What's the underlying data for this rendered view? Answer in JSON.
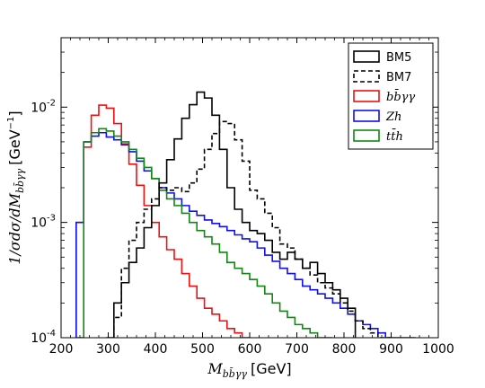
{
  "chart_data": {
    "type": "line",
    "style": "step",
    "xlabel": "$M_{b\\bar{b}\\gamma\\gamma}$ [GeV]",
    "xlabel_parts": {
      "sym": "M",
      "sub": "bb̄γγ",
      "unit": "[GeV]"
    },
    "ylabel": "1/σdσ/dM_{bb̄γγ} [GeV⁻¹]",
    "ylabel_parts": {
      "prefix": "1/σdσ/dM",
      "sub": "bb̄γγ",
      "unit_pre": "[GeV",
      "unit_sup": "−1",
      "unit_post": "]"
    },
    "xlim": [
      200,
      1000
    ],
    "ylim": [
      0.0001,
      0.04
    ],
    "yscale": "log",
    "xticks": [
      200,
      300,
      400,
      500,
      600,
      700,
      800,
      900,
      1000
    ],
    "xtick_labels": [
      "200",
      "300",
      "400",
      "500",
      "600",
      "700",
      "800",
      "900",
      "1000"
    ],
    "yticks": [
      0.0001,
      0.001,
      0.01
    ],
    "ytick_labels": [
      {
        "base": "10",
        "exp": "-4"
      },
      {
        "base": "10",
        "exp": "-3"
      },
      {
        "base": "10",
        "exp": "-2"
      }
    ],
    "legend_position": "top-right",
    "bin_width": 16,
    "series": [
      {
        "name": "BM5",
        "color": "#000000",
        "dash": "solid",
        "math": false,
        "start": 296,
        "values": [
          0.0001,
          0.0002,
          0.0003,
          0.00045,
          0.0006,
          0.0009,
          0.0014,
          0.0022,
          0.0035,
          0.0053,
          0.008,
          0.0105,
          0.0135,
          0.012,
          0.0085,
          0.0043,
          0.002,
          0.0013,
          0.001,
          0.00085,
          0.0008,
          0.0007,
          0.00055,
          0.00048,
          0.00055,
          0.00048,
          0.0004,
          0.00045,
          0.00036,
          0.0003,
          0.00026,
          0.00022,
          0.00018
        ]
      },
      {
        "name": "BM7",
        "color": "#000000",
        "dash": "dashed",
        "math": false,
        "start": 312,
        "values": [
          0.00015,
          0.0004,
          0.0007,
          0.001,
          0.0013,
          0.0016,
          0.002,
          0.0019,
          0.002,
          0.00185,
          0.0022,
          0.0029,
          0.0043,
          0.0059,
          0.0075,
          0.0072,
          0.0052,
          0.0034,
          0.0019,
          0.0016,
          0.0012,
          0.0009,
          0.00065,
          0.0006,
          0.00048,
          0.0004,
          0.00035,
          0.0003,
          0.00027,
          0.00024,
          0.0002,
          0.00017,
          0.00014,
          0.00012,
          0.00011,
          0.0001,
          9e-05
        ]
      },
      {
        "name": "bb̄γγ",
        "color": "#ee1111",
        "dash": "solid",
        "math": true,
        "start": 232,
        "values": [
          0.001,
          0.0045,
          0.0085,
          0.0104,
          0.0098,
          0.0072,
          0.0048,
          0.0032,
          0.0021,
          0.0014,
          0.001,
          0.00075,
          0.00058,
          0.00048,
          0.00036,
          0.00028,
          0.00022,
          0.00018,
          0.00016,
          0.00014,
          0.00012,
          0.00011,
          0.0001
        ]
      },
      {
        "name": "Zh",
        "color": "#1111ee",
        "dash": "solid",
        "math": true,
        "start": 232,
        "values": [
          0.001,
          0.005,
          0.0056,
          0.006,
          0.0055,
          0.0052,
          0.0047,
          0.0041,
          0.0034,
          0.0028,
          0.0024,
          0.002,
          0.0018,
          0.0016,
          0.0014,
          0.00125,
          0.00115,
          0.00105,
          0.00098,
          0.00092,
          0.00085,
          0.00078,
          0.00072,
          0.00068,
          0.0006,
          0.00052,
          0.00046,
          0.0004,
          0.00036,
          0.00032,
          0.00028,
          0.00026,
          0.00024,
          0.00022,
          0.0002,
          0.00018,
          0.00016,
          0.00014,
          0.00013,
          0.00012,
          0.00011,
          0.0001,
          9e-05,
          8e-05,
          8e-05
        ]
      },
      {
        "name": "tt̄h",
        "color": "#118811",
        "dash": "solid",
        "math": true,
        "start": 232,
        "values": [
          0.0001,
          0.005,
          0.006,
          0.0065,
          0.0062,
          0.0056,
          0.005,
          0.0043,
          0.0036,
          0.003,
          0.0024,
          0.0019,
          0.0016,
          0.0014,
          0.0012,
          0.001,
          0.00085,
          0.00075,
          0.00065,
          0.00055,
          0.00045,
          0.0004,
          0.00036,
          0.00032,
          0.00028,
          0.00024,
          0.0002,
          0.00017,
          0.00015,
          0.00013,
          0.00012,
          0.00011,
          0.0001,
          9e-05
        ]
      }
    ]
  }
}
